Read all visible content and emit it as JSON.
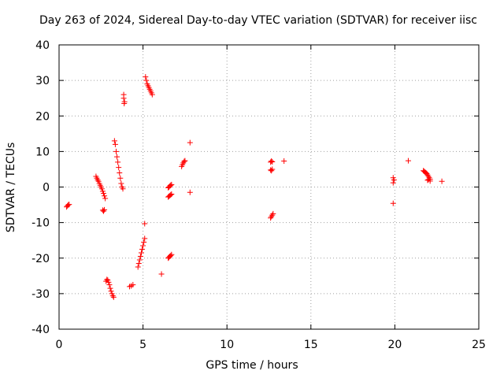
{
  "chart_data": {
    "type": "scatter",
    "title": "Day 263 of 2024, Sidereal Day-to-day VTEC variation (SDTVAR) for receiver iisc",
    "xlabel": "GPS time / hours",
    "ylabel": "SDTVAR / TECUs",
    "xlim": [
      0,
      25
    ],
    "ylim": [
      -40,
      40
    ],
    "xticks": [
      0,
      5,
      10,
      15,
      20,
      25
    ],
    "yticks": [
      -40,
      -30,
      -20,
      -10,
      0,
      10,
      20,
      30,
      40
    ],
    "grid": true,
    "marker": "plus",
    "color": "#ff0000",
    "series": [
      {
        "points": [
          [
            0.45,
            -5.6
          ],
          [
            0.5,
            -5.3
          ],
          [
            0.55,
            -5.0
          ],
          [
            0.6,
            -4.9
          ],
          [
            2.2,
            3.0
          ],
          [
            2.25,
            2.5
          ],
          [
            2.3,
            2.0
          ],
          [
            2.35,
            1.6
          ],
          [
            2.4,
            1.0
          ],
          [
            2.45,
            0.5
          ],
          [
            2.5,
            0.0
          ],
          [
            2.55,
            -0.5
          ],
          [
            2.6,
            -1.2
          ],
          [
            2.65,
            -1.8
          ],
          [
            2.7,
            -2.5
          ],
          [
            2.75,
            -3.2
          ],
          [
            2.6,
            -6.5
          ],
          [
            2.65,
            -6.8
          ],
          [
            2.7,
            -6.4
          ],
          [
            2.8,
            -26.5
          ],
          [
            2.85,
            -26.0
          ],
          [
            2.9,
            -26.2
          ],
          [
            2.95,
            -26.8
          ],
          [
            3.0,
            -27.5
          ],
          [
            3.05,
            -28.5
          ],
          [
            3.1,
            -29.3
          ],
          [
            3.15,
            -30.0
          ],
          [
            3.2,
            -30.6
          ],
          [
            3.25,
            -31.0
          ],
          [
            3.3,
            13.0
          ],
          [
            3.35,
            12.0
          ],
          [
            3.4,
            10.0
          ],
          [
            3.45,
            8.5
          ],
          [
            3.5,
            7.0
          ],
          [
            3.55,
            5.5
          ],
          [
            3.6,
            4.0
          ],
          [
            3.65,
            2.5
          ],
          [
            3.7,
            1.0
          ],
          [
            3.75,
            0.0
          ],
          [
            3.8,
            -0.5
          ],
          [
            3.85,
            26.0
          ],
          [
            3.85,
            25.0
          ],
          [
            3.9,
            24.0
          ],
          [
            3.88,
            23.5
          ],
          [
            4.2,
            -28.0
          ],
          [
            4.3,
            -27.8
          ],
          [
            4.4,
            -27.5
          ],
          [
            4.7,
            -22.5
          ],
          [
            4.75,
            -21.5
          ],
          [
            4.8,
            -20.5
          ],
          [
            4.85,
            -19.5
          ],
          [
            4.9,
            -18.5
          ],
          [
            4.95,
            -17.5
          ],
          [
            5.0,
            -16.5
          ],
          [
            5.05,
            -15.5
          ],
          [
            5.1,
            -14.5
          ],
          [
            5.1,
            -10.3
          ],
          [
            5.15,
            31.0
          ],
          [
            5.2,
            30.0
          ],
          [
            5.25,
            29.0
          ],
          [
            5.3,
            28.5
          ],
          [
            5.35,
            28.0
          ],
          [
            5.4,
            27.5
          ],
          [
            5.45,
            27.0
          ],
          [
            5.5,
            26.5
          ],
          [
            5.55,
            26.0
          ],
          [
            6.1,
            -24.5
          ],
          [
            6.5,
            -20.0
          ],
          [
            6.55,
            -19.8
          ],
          [
            6.6,
            -19.5
          ],
          [
            6.65,
            -19.3
          ],
          [
            6.7,
            -19.0
          ],
          [
            6.5,
            -2.8
          ],
          [
            6.55,
            -2.6
          ],
          [
            6.6,
            -2.4
          ],
          [
            6.65,
            -2.2
          ],
          [
            6.7,
            -2.0
          ],
          [
            6.5,
            -0.2
          ],
          [
            6.55,
            0.0
          ],
          [
            6.6,
            0.3
          ],
          [
            6.65,
            0.5
          ],
          [
            6.7,
            0.7
          ],
          [
            7.3,
            5.8
          ],
          [
            7.35,
            6.3
          ],
          [
            7.4,
            6.8
          ],
          [
            7.45,
            7.2
          ],
          [
            7.5,
            7.4
          ],
          [
            7.8,
            12.5
          ],
          [
            7.8,
            -1.5
          ],
          [
            12.6,
            7.0
          ],
          [
            12.65,
            7.3
          ],
          [
            12.7,
            7.1
          ],
          [
            12.6,
            4.8
          ],
          [
            12.65,
            4.6
          ],
          [
            12.7,
            5.0
          ],
          [
            12.6,
            -8.7
          ],
          [
            12.65,
            -8.3
          ],
          [
            12.7,
            -7.9
          ],
          [
            12.75,
            -7.5
          ],
          [
            13.4,
            7.3
          ],
          [
            19.9,
            2.6
          ],
          [
            19.95,
            2.0
          ],
          [
            19.9,
            1.2
          ],
          [
            19.9,
            -4.6
          ],
          [
            20.8,
            7.4
          ],
          [
            21.7,
            4.6
          ],
          [
            21.75,
            4.4
          ],
          [
            21.8,
            4.2
          ],
          [
            21.85,
            4.0
          ],
          [
            21.9,
            3.8
          ],
          [
            21.95,
            3.4
          ],
          [
            22.0,
            3.0
          ],
          [
            22.05,
            2.6
          ],
          [
            22.1,
            2.2
          ],
          [
            21.95,
            1.9
          ],
          [
            22.0,
            2.1
          ],
          [
            22.1,
            1.7
          ],
          [
            22.8,
            1.6
          ]
        ]
      }
    ]
  }
}
